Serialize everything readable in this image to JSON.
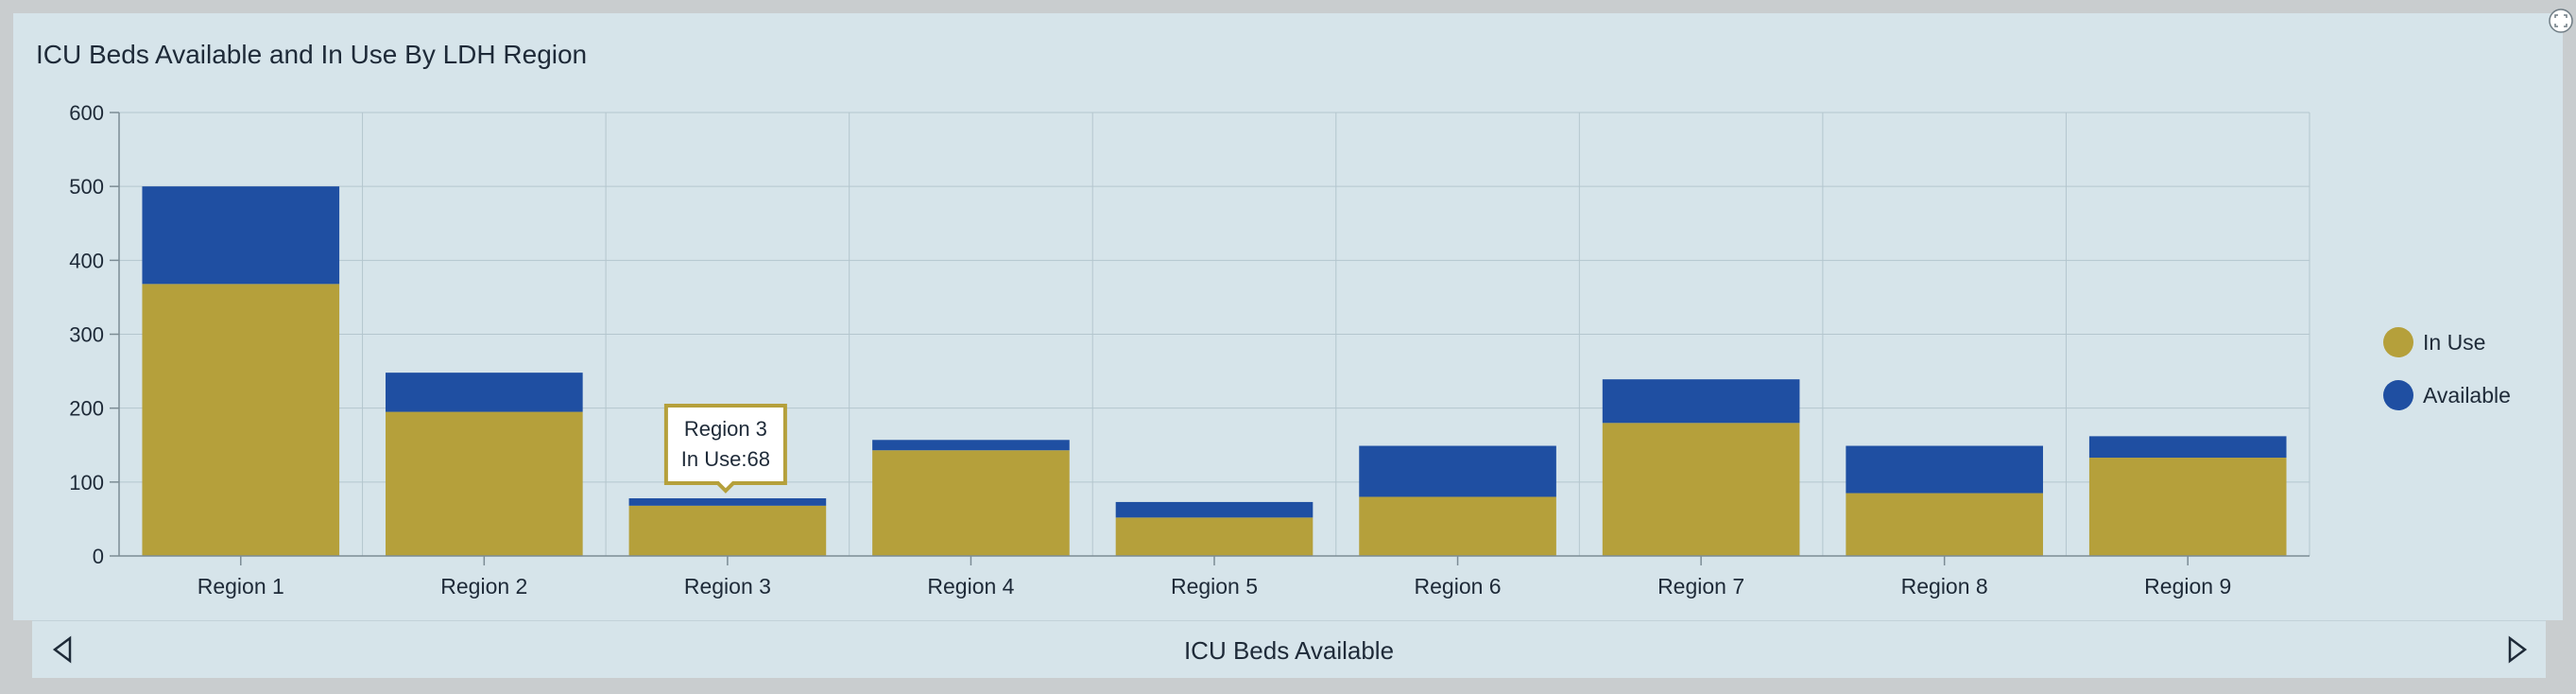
{
  "chart_data": {
    "type": "bar",
    "stacked": true,
    "title": "ICU Beds Available and In Use By LDH Region",
    "categories": [
      "Region 1",
      "Region 2",
      "Region 3",
      "Region 4",
      "Region 5",
      "Region 6",
      "Region 7",
      "Region 8",
      "Region 9"
    ],
    "series": [
      {
        "name": "In Use",
        "color": "#b5a03b",
        "values": [
          368,
          195,
          68,
          143,
          52,
          80,
          180,
          85,
          133
        ]
      },
      {
        "name": "Available",
        "color": "#1f4fa2",
        "values": [
          132,
          53,
          10,
          14,
          21,
          69,
          59,
          64,
          29
        ]
      }
    ],
    "yticks": [
      0,
      100,
      200,
      300,
      400,
      500,
      600
    ],
    "ylim": [
      0,
      600
    ],
    "grid": true,
    "legend": "right",
    "tooltip": {
      "category": "Region 3",
      "text": "In Use:68"
    }
  },
  "nav": {
    "label": "ICU Beds Available"
  },
  "colors": {
    "background": "#d6e4ea",
    "grid": "#b4c6ce",
    "axis": "#7c8c95"
  }
}
